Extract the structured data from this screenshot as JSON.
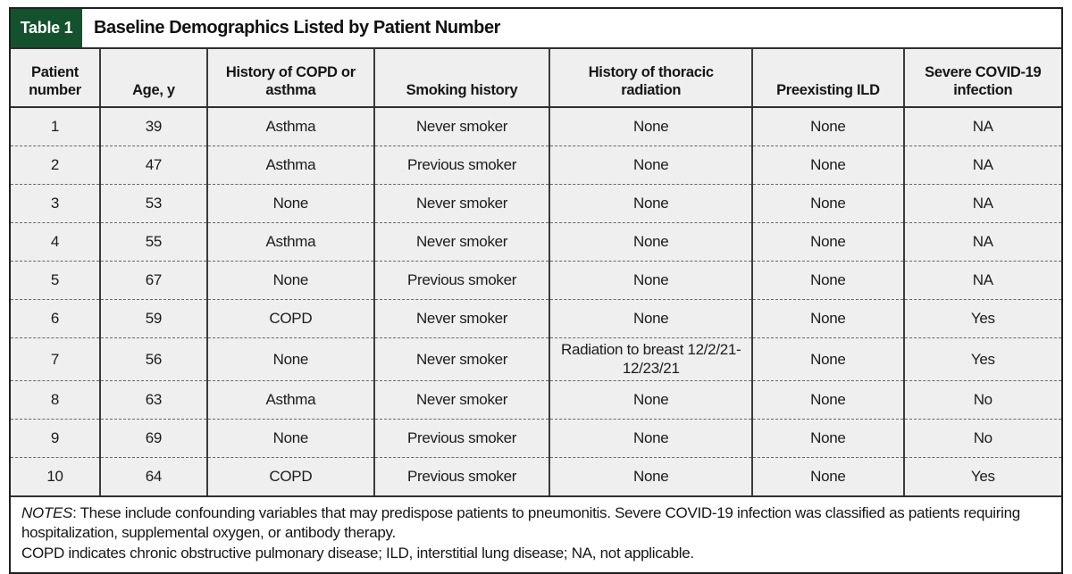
{
  "table": {
    "label": "Table 1",
    "title": "Baseline Demographics Listed by Patient Number",
    "columns": [
      "Patient number",
      "Age, y",
      "History of COPD or asthma",
      "Smoking history",
      "History of thoracic radiation",
      "Preexisting ILD",
      "Severe COVID-19 infection"
    ],
    "rows": [
      [
        "1",
        "39",
        "Asthma",
        "Never smoker",
        "None",
        "None",
        "NA"
      ],
      [
        "2",
        "47",
        "Asthma",
        "Previous smoker",
        "None",
        "None",
        "NA"
      ],
      [
        "3",
        "53",
        "None",
        "Never smoker",
        "None",
        "None",
        "NA"
      ],
      [
        "4",
        "55",
        "Asthma",
        "Never smoker",
        "None",
        "None",
        "NA"
      ],
      [
        "5",
        "67",
        "None",
        "Previous smoker",
        "None",
        "None",
        "NA"
      ],
      [
        "6",
        "59",
        "COPD",
        "Never smoker",
        "None",
        "None",
        "Yes"
      ],
      [
        "7",
        "56",
        "None",
        "Never smoker",
        "Radiation to breast 12/2/21-12/23/21",
        "None",
        "Yes"
      ],
      [
        "8",
        "63",
        "Asthma",
        "Never smoker",
        "None",
        "None",
        "No"
      ],
      [
        "9",
        "69",
        "None",
        "Previous smoker",
        "None",
        "None",
        "No"
      ],
      [
        "10",
        "64",
        "COPD",
        "Previous smoker",
        "None",
        "None",
        "Yes"
      ]
    ],
    "notes": {
      "label": "NOTES",
      "body": ": These include confounding variables that may predispose patients to pneumonitis. Severe COVID-19 infection was classified as patients requiring hospitalization, supplemental oxygen, or antibody therapy.",
      "abbreviations": "COPD indicates chronic obstructive pulmonary disease; ILD, interstitial lung disease; NA, not applicable."
    },
    "colors": {
      "accent_green": "#14522e",
      "cell_background": "#efefef",
      "border_dark": "#2f2f2f",
      "dashed_separator": "#676767",
      "text": "#1a1a1a"
    }
  }
}
